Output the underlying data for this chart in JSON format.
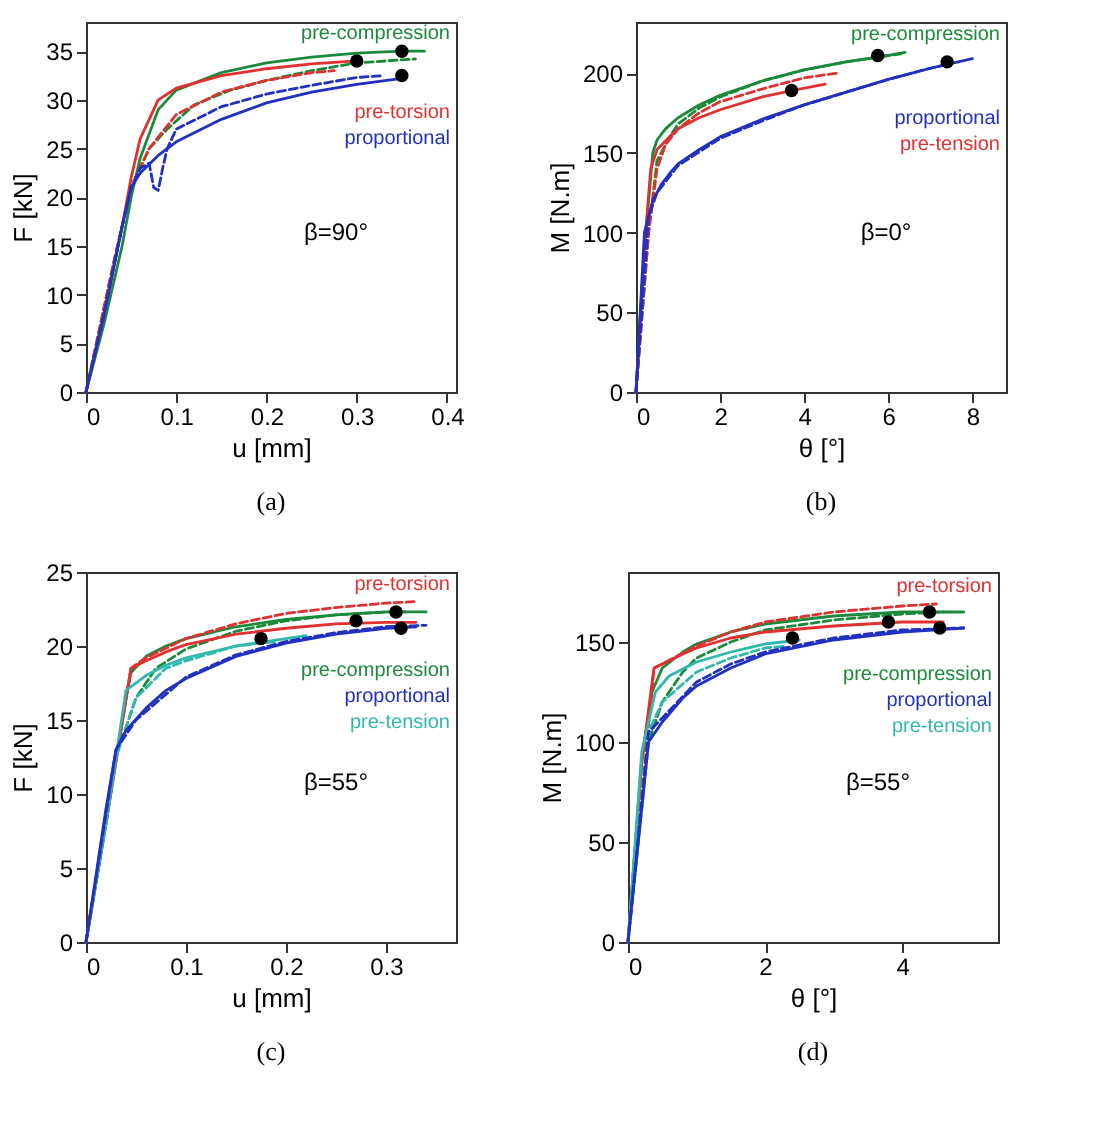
{
  "chart_data": [
    {
      "type": "line",
      "title": "(a)",
      "xlabel": "u [mm]",
      "ylabel": "F [kN]",
      "xlim": [
        0,
        0.41
      ],
      "xticks": [
        0,
        0.1,
        0.2,
        0.3,
        0.4
      ],
      "ylim": [
        0,
        38
      ],
      "yticks": [
        0,
        5,
        10,
        15,
        20,
        25,
        30,
        35
      ],
      "grid": false,
      "legend": false,
      "annotations": [
        "β=90°"
      ],
      "series": [
        {
          "name": "pre-compression",
          "color": "#1a8a3a",
          "line_style": "solid",
          "x": [
            0,
            0.02,
            0.04,
            0.05,
            0.06,
            0.08,
            0.1,
            0.15,
            0.2,
            0.25,
            0.3,
            0.35,
            0.375
          ],
          "values": [
            0,
            7,
            15,
            20,
            24,
            29,
            31,
            32.8,
            33.8,
            34.4,
            34.8,
            35,
            35
          ]
        },
        {
          "color": "#1a8a3a",
          "line_style": "dashed",
          "x": [
            0,
            0.03,
            0.05,
            0.07,
            0.09,
            0.12,
            0.16,
            0.2,
            0.25,
            0.3,
            0.365
          ],
          "values": [
            0,
            13,
            21,
            25,
            27,
            29.5,
            31,
            32,
            33,
            33.8,
            34.2
          ]
        },
        {
          "name": "pre-torsion",
          "color": "#e03030",
          "line_style": "solid",
          "x": [
            0,
            0.02,
            0.04,
            0.05,
            0.06,
            0.08,
            0.1,
            0.15,
            0.2,
            0.25,
            0.3
          ],
          "values": [
            0,
            8,
            17,
            22,
            26,
            30,
            31.2,
            32.5,
            33.2,
            33.7,
            34
          ]
        },
        {
          "color": "#e03030",
          "line_style": "dashed",
          "x": [
            0,
            0.03,
            0.05,
            0.07,
            0.1,
            0.15,
            0.2,
            0.25,
            0.275
          ],
          "values": [
            0,
            13,
            21,
            25,
            28.5,
            30.8,
            32,
            32.8,
            33
          ]
        },
        {
          "name": "proportional",
          "color": "#2030c0",
          "line_style": "solid",
          "x": [
            0,
            0.02,
            0.04,
            0.05,
            0.06,
            0.08,
            0.1,
            0.15,
            0.2,
            0.25,
            0.3,
            0.35
          ],
          "values": [
            0,
            8,
            17,
            21,
            22.5,
            24.3,
            25.7,
            28,
            29.7,
            30.8,
            31.6,
            32.2
          ]
        },
        {
          "color": "#2030c0",
          "line_style": "dashed",
          "x": [
            0,
            0.02,
            0.04,
            0.05,
            0.06,
            0.07,
            0.075,
            0.08,
            0.085,
            0.09,
            0.1,
            0.15,
            0.2,
            0.25,
            0.3,
            0.33
          ],
          "values": [
            0,
            8,
            17,
            21,
            23,
            23.5,
            21,
            20.7,
            23,
            25,
            27,
            29.3,
            30.6,
            31.5,
            32.3,
            32.5
          ]
        },
        {
          "type": "scatter",
          "marker": "circle",
          "color": "#000000",
          "x": [
            0.3,
            0.35,
            0.35
          ],
          "values": [
            34,
            35,
            32.5
          ]
        }
      ]
    },
    {
      "type": "line",
      "title": "(b)",
      "xlabel": "θ [°]",
      "ylabel": "M [N.m]",
      "xlim": [
        0,
        8.8
      ],
      "xticks": [
        0,
        2,
        4,
        6,
        8
      ],
      "ylim": [
        0,
        232
      ],
      "yticks": [
        0,
        50,
        100,
        150,
        200
      ],
      "grid": false,
      "legend": false,
      "annotations": [
        "β=0°"
      ],
      "series": [
        {
          "name": "pre-compression",
          "color": "#1a8a3a",
          "line_style": "solid",
          "x": [
            0,
            0.2,
            0.4,
            0.5,
            0.7,
            1,
            1.5,
            2,
            3,
            4,
            5,
            6,
            6.4
          ],
          "values": [
            0,
            90,
            150,
            158,
            165,
            172,
            180,
            186,
            195,
            202,
            207,
            211,
            213
          ]
        },
        {
          "color": "#1a8a3a",
          "line_style": "dashed",
          "x": [
            0,
            0.3,
            0.5,
            0.8,
            1,
            1.5,
            2,
            3,
            4,
            5,
            6,
            6.3
          ],
          "values": [
            0,
            100,
            145,
            160,
            168,
            178,
            185,
            195,
            202,
            207,
            211,
            212
          ]
        },
        {
          "name": "pre-tension",
          "color": "#e03030",
          "line_style": "solid",
          "x": [
            0,
            0.2,
            0.35,
            0.5,
            0.8,
            1,
            1.5,
            2,
            3,
            3.7,
            4.5
          ],
          "values": [
            0,
            90,
            140,
            152,
            160,
            165,
            172,
            177,
            185,
            189,
            193
          ]
        },
        {
          "color": "#e03030",
          "line_style": "dashed",
          "x": [
            0,
            0.3,
            0.5,
            0.7,
            1,
            1.5,
            2,
            3,
            4,
            4.8
          ],
          "values": [
            0,
            100,
            140,
            155,
            165,
            175,
            182,
            190,
            197,
            200
          ]
        },
        {
          "name": "proportional",
          "color": "#2030c0",
          "line_style": "solid",
          "x": [
            0,
            0.2,
            0.4,
            0.6,
            0.8,
            1,
            1.5,
            2,
            3,
            4,
            5,
            6,
            7,
            8
          ],
          "values": [
            0,
            100,
            120,
            130,
            137,
            143,
            152,
            160,
            171,
            180,
            188,
            196,
            203,
            209
          ]
        },
        {
          "color": "#2030c0",
          "line_style": "dashed",
          "x": [
            0,
            0.3,
            0.5,
            1,
            2,
            3,
            4,
            5,
            6,
            7,
            7.5
          ],
          "values": [
            0,
            110,
            125,
            142,
            159,
            170,
            180,
            188,
            196,
            203,
            206
          ]
        },
        {
          "type": "scatter",
          "marker": "circle",
          "color": "#000000",
          "x": [
            5.75,
            7.4,
            3.7
          ],
          "values": [
            211,
            207,
            189
          ]
        }
      ]
    },
    {
      "type": "line",
      "title": "(c)",
      "xlabel": "u [mm]",
      "ylabel": "F [kN]",
      "xlim": [
        0,
        0.37
      ],
      "xticks": [
        0,
        0.1,
        0.2,
        0.3
      ],
      "ylim": [
        0,
        25
      ],
      "yticks": [
        0,
        5,
        10,
        15,
        20,
        25
      ],
      "grid": false,
      "legend": false,
      "annotations": [
        "β=55°"
      ],
      "series": [
        {
          "name": "pre-compression",
          "color": "#1a8a3a",
          "line_style": "solid",
          "x": [
            0,
            0.02,
            0.04,
            0.045,
            0.06,
            0.08,
            0.1,
            0.15,
            0.2,
            0.25,
            0.3,
            0.34
          ],
          "values": [
            0,
            8,
            16.5,
            18.2,
            19.3,
            20,
            20.5,
            21.3,
            21.8,
            22.1,
            22.3,
            22.3
          ]
        },
        {
          "color": "#1a8a3a",
          "line_style": "dashed",
          "x": [
            0,
            0.03,
            0.05,
            0.07,
            0.1,
            0.15,
            0.2,
            0.25,
            0.3,
            0.32
          ],
          "values": [
            0,
            12.5,
            16.5,
            18.5,
            19.8,
            21,
            21.7,
            22.1,
            22.3,
            22.3
          ]
        },
        {
          "color": "#e03030",
          "line_style": "solid",
          "x": [
            0,
            0.02,
            0.045,
            0.06,
            0.08,
            0.1,
            0.15,
            0.2,
            0.25,
            0.3,
            0.33
          ],
          "values": [
            0,
            8,
            18.5,
            19,
            19.6,
            20.1,
            20.8,
            21.2,
            21.5,
            21.6,
            21.6
          ]
        },
        {
          "name": "pre-torsion",
          "color": "#e03030",
          "line_style": "dashed",
          "x": [
            0,
            0.045,
            0.06,
            0.1,
            0.15,
            0.2,
            0.25,
            0.3,
            0.33
          ],
          "values": [
            0,
            18.5,
            19.2,
            20.5,
            21.5,
            22.2,
            22.6,
            22.9,
            23
          ]
        },
        {
          "name": "pre-tension",
          "color": "#30b8b0",
          "line_style": "solid",
          "x": [
            0,
            0.02,
            0.04,
            0.06,
            0.08,
            0.1,
            0.15,
            0.2,
            0.22
          ],
          "values": [
            0,
            8,
            17,
            18,
            18.7,
            19.2,
            20,
            20.5,
            20.7
          ]
        },
        {
          "color": "#30b8b0",
          "line_style": "dashed",
          "x": [
            0,
            0.03,
            0.05,
            0.08,
            0.1,
            0.15,
            0.19
          ],
          "values": [
            0,
            12.5,
            16.5,
            18.5,
            19,
            20,
            20.3
          ]
        },
        {
          "name": "proportional",
          "color": "#2030c0",
          "line_style": "solid",
          "x": [
            0,
            0.02,
            0.03,
            0.04,
            0.06,
            0.08,
            0.1,
            0.15,
            0.2,
            0.25,
            0.3,
            0.33
          ],
          "values": [
            0,
            9,
            13,
            14.3,
            15.8,
            17,
            17.8,
            19.3,
            20.2,
            20.8,
            21.2,
            21.3
          ]
        },
        {
          "color": "#2030c0",
          "line_style": "dashed",
          "x": [
            0,
            0.03,
            0.05,
            0.1,
            0.15,
            0.2,
            0.25,
            0.3,
            0.34
          ],
          "values": [
            0,
            13,
            15,
            17.9,
            19.4,
            20.3,
            20.9,
            21.3,
            21.4
          ]
        },
        {
          "type": "scatter",
          "marker": "circle",
          "color": "#000000",
          "x": [
            0.175,
            0.27,
            0.31,
            0.315
          ],
          "values": [
            20.5,
            21.7,
            22.3,
            21.2
          ]
        }
      ]
    },
    {
      "type": "line",
      "title": "(d)",
      "xlabel": "θ [°]",
      "ylabel": "M [N.m]",
      "xlim": [
        0,
        5.4
      ],
      "xticks": [
        0,
        2,
        4
      ],
      "ylim": [
        0,
        185
      ],
      "yticks": [
        0,
        50,
        100,
        150
      ],
      "grid": false,
      "legend": false,
      "annotations": [
        "β=55°"
      ],
      "series": [
        {
          "name": "pre-compression",
          "color": "#1a8a3a",
          "line_style": "solid",
          "x": [
            0,
            0.2,
            0.35,
            0.5,
            0.8,
            1,
            1.5,
            2,
            3,
            4,
            4.9
          ],
          "values": [
            0,
            90,
            125,
            137,
            145,
            149,
            155,
            159,
            163,
            165,
            165
          ]
        },
        {
          "color": "#1a8a3a",
          "line_style": "dashed",
          "x": [
            0,
            0.3,
            0.5,
            0.8,
            1,
            1.5,
            2,
            3,
            4,
            4.6
          ],
          "values": [
            0,
            100,
            120,
            135,
            142,
            150,
            156,
            161,
            164,
            165
          ]
        },
        {
          "color": "#e03030",
          "line_style": "solid",
          "x": [
            0,
            0.2,
            0.38,
            0.5,
            0.8,
            1,
            1.5,
            2,
            3,
            4,
            4.6
          ],
          "values": [
            0,
            90,
            137,
            139,
            144,
            147,
            152,
            155,
            158,
            160,
            160
          ]
        },
        {
          "name": "pre-torsion",
          "color": "#e03030",
          "line_style": "dashed",
          "x": [
            0,
            0.38,
            0.5,
            1,
            1.5,
            2,
            3,
            4,
            4.5
          ],
          "values": [
            0,
            137,
            139,
            148,
            155,
            160,
            165,
            168,
            169
          ]
        },
        {
          "name": "pre-tension",
          "color": "#30b8b0",
          "line_style": "solid",
          "x": [
            0,
            0.2,
            0.4,
            0.6,
            1,
            1.5,
            2,
            2.5
          ],
          "values": [
            0,
            95,
            125,
            133,
            140,
            145,
            149,
            151
          ]
        },
        {
          "color": "#30b8b0",
          "line_style": "dashed",
          "x": [
            0,
            0.3,
            0.5,
            1,
            1.5,
            2,
            2.3
          ],
          "values": [
            0,
            105,
            120,
            135,
            142,
            147,
            148
          ]
        },
        {
          "name": "proportional",
          "color": "#2030c0",
          "line_style": "solid",
          "x": [
            0,
            0.3,
            0.5,
            0.8,
            1,
            1.5,
            2,
            3,
            4,
            4.9
          ],
          "values": [
            0,
            100,
            110,
            122,
            128,
            137,
            144,
            151,
            155,
            157
          ]
        },
        {
          "color": "#2030c0",
          "line_style": "dashed",
          "x": [
            0,
            0.3,
            0.5,
            1,
            1.5,
            2,
            3,
            4,
            4.9
          ],
          "values": [
            0,
            105,
            112,
            130,
            139,
            145,
            152,
            156,
            157
          ]
        },
        {
          "type": "scatter",
          "marker": "circle",
          "color": "#000000",
          "x": [
            2.4,
            3.8,
            4.4,
            4.55
          ],
          "values": [
            152,
            160,
            165,
            157
          ]
        }
      ]
    }
  ]
}
